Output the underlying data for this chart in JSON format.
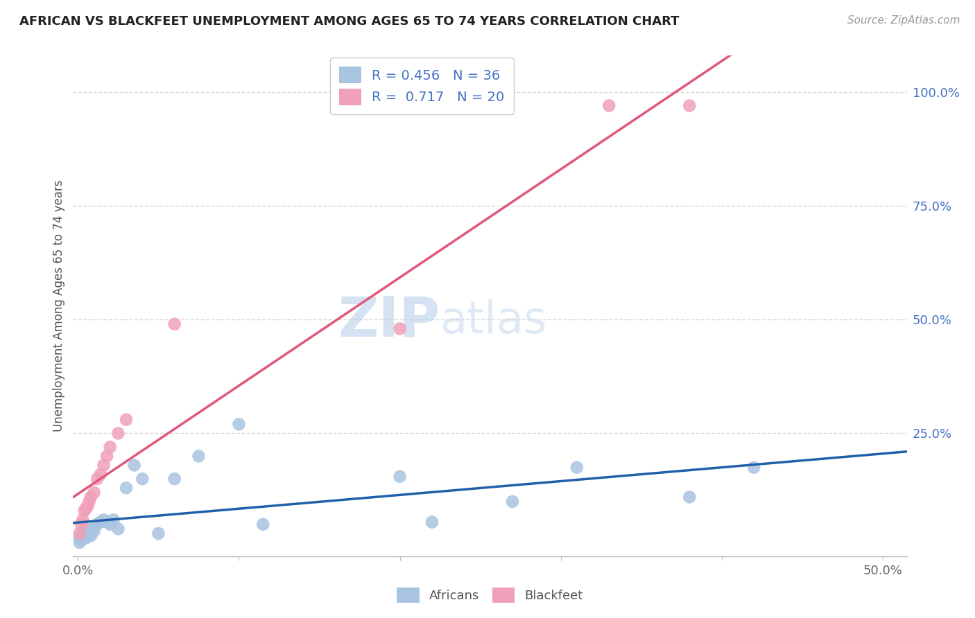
{
  "title": "AFRICAN VS BLACKFEET UNEMPLOYMENT AMONG AGES 65 TO 74 YEARS CORRELATION CHART",
  "source": "Source: ZipAtlas.com",
  "ylabel": "Unemployment Among Ages 65 to 74 years",
  "xlim": [
    -0.003,
    0.515
  ],
  "ylim": [
    -0.02,
    1.08
  ],
  "background_color": "#ffffff",
  "grid_color": "#d8d8d8",
  "africans_color": "#a8c4e0",
  "blackfeet_color": "#f0a0b8",
  "africans_line_color": "#2060a8",
  "blackfeet_line_color": "#e05878",
  "africans_R": 0.456,
  "africans_N": 36,
  "blackfeet_R": 0.717,
  "blackfeet_N": 20,
  "africans_x": [
    0.001,
    0.001,
    0.002,
    0.002,
    0.003,
    0.003,
    0.004,
    0.004,
    0.005,
    0.005,
    0.006,
    0.007,
    0.008,
    0.009,
    0.01,
    0.012,
    0.014,
    0.016,
    0.018,
    0.02,
    0.022,
    0.025,
    0.03,
    0.035,
    0.04,
    0.05,
    0.06,
    0.075,
    0.1,
    0.115,
    0.2,
    0.22,
    0.27,
    0.31,
    0.38,
    0.42
  ],
  "africans_y": [
    0.01,
    0.02,
    0.015,
    0.025,
    0.02,
    0.03,
    0.025,
    0.035,
    0.02,
    0.04,
    0.03,
    0.035,
    0.025,
    0.04,
    0.035,
    0.05,
    0.055,
    0.06,
    0.055,
    0.05,
    0.06,
    0.04,
    0.13,
    0.18,
    0.15,
    0.03,
    0.15,
    0.2,
    0.27,
    0.05,
    0.155,
    0.055,
    0.1,
    0.175,
    0.11,
    0.175
  ],
  "blackfeet_x": [
    0.001,
    0.002,
    0.003,
    0.004,
    0.005,
    0.006,
    0.007,
    0.008,
    0.01,
    0.012,
    0.014,
    0.016,
    0.018,
    0.02,
    0.025,
    0.03,
    0.06,
    0.2,
    0.33,
    0.38
  ],
  "blackfeet_y": [
    0.03,
    0.05,
    0.06,
    0.08,
    0.085,
    0.09,
    0.1,
    0.11,
    0.12,
    0.15,
    0.16,
    0.18,
    0.2,
    0.22,
    0.25,
    0.28,
    0.49,
    0.48,
    0.97,
    0.97
  ],
  "watermark_text": "ZIPatlas",
  "watermark_color": "#ccdff0",
  "title_fontsize": 13,
  "source_fontsize": 11,
  "tick_fontsize": 13,
  "ylabel_fontsize": 12,
  "legend_fontsize": 14,
  "scatter_size": 180,
  "line_width": 2.5
}
